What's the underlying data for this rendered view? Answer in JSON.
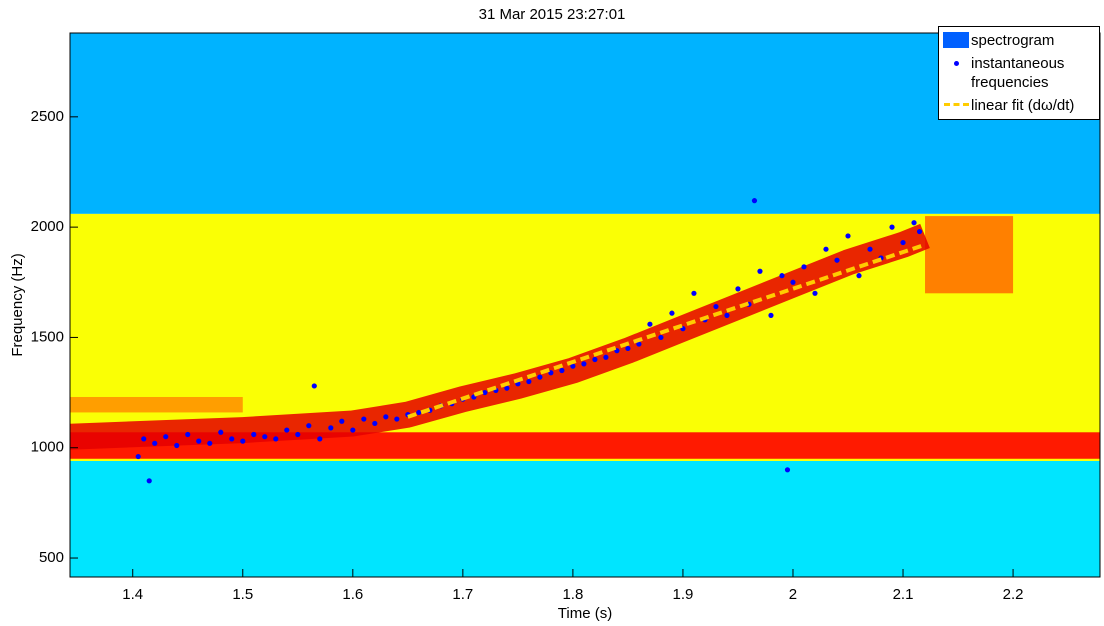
{
  "chart_data": {
    "type": "spectrogram",
    "title": "31 Mar 2015 23:27:01",
    "x_label": "Time (s)",
    "y_label": "Frequency (Hz)",
    "xlim": [
      1.343,
      2.279
    ],
    "ylim": [
      414,
      2880
    ],
    "xticks": [
      1.4,
      1.5,
      1.6,
      1.7,
      1.8,
      1.9,
      2,
      2.1,
      2.2
    ],
    "yticks": [
      500,
      1000,
      1500,
      2000,
      2500
    ],
    "series": [
      {
        "name": "spectrogram",
        "type": "heatmap",
        "color": "#0060ff",
        "bands": [
          {
            "x": [
              1.343,
              2.279
            ],
            "y": [
              414,
              940
            ],
            "level": 0.35
          },
          {
            "x": [
              1.343,
              2.279
            ],
            "y": [
              2060,
              2880
            ],
            "level": 0.3
          },
          {
            "x": [
              1.343,
              2.279
            ],
            "y": [
              940,
              2060
            ],
            "level": 0.62
          },
          {
            "x": [
              1.343,
              2.279
            ],
            "y": [
              950,
              1070
            ],
            "level": 0.85
          },
          {
            "x": [
              1.343,
              1.5
            ],
            "y": [
              1160,
              1230
            ],
            "level": 0.72
          },
          {
            "x": [
              2.12,
              2.2
            ],
            "y": [
              1700,
              2050
            ],
            "level": 0.75
          }
        ],
        "ridge": {
          "level": 0.9,
          "x": [
            1.343,
            1.5,
            1.6,
            1.65,
            1.7,
            1.75,
            1.8,
            1.85,
            1.9,
            1.95,
            2.0,
            2.05,
            2.1,
            2.12
          ],
          "y": [
            1050,
            1080,
            1110,
            1150,
            1220,
            1280,
            1350,
            1440,
            1540,
            1640,
            1740,
            1840,
            1920,
            1960
          ]
        }
      },
      {
        "name": "instantaneous frequencies",
        "type": "scatter",
        "color": "#0000ff",
        "x": [
          1.405,
          1.41,
          1.415,
          1.42,
          1.43,
          1.44,
          1.45,
          1.46,
          1.47,
          1.48,
          1.49,
          1.5,
          1.51,
          1.52,
          1.53,
          1.54,
          1.55,
          1.56,
          1.565,
          1.57,
          1.58,
          1.59,
          1.6,
          1.61,
          1.62,
          1.63,
          1.64,
          1.65,
          1.66,
          1.67,
          1.68,
          1.69,
          1.7,
          1.71,
          1.72,
          1.73,
          1.74,
          1.75,
          1.76,
          1.77,
          1.78,
          1.79,
          1.8,
          1.81,
          1.82,
          1.83,
          1.84,
          1.85,
          1.86,
          1.87,
          1.88,
          1.89,
          1.9,
          1.91,
          1.92,
          1.93,
          1.94,
          1.95,
          1.96,
          1.965,
          1.97,
          1.98,
          1.99,
          1.995,
          2.0,
          2.01,
          2.02,
          2.03,
          2.04,
          2.05,
          2.06,
          2.07,
          2.08,
          2.09,
          2.1,
          2.11,
          2.115
        ],
        "y": [
          960,
          1040,
          850,
          1020,
          1050,
          1010,
          1060,
          1030,
          1020,
          1070,
          1040,
          1030,
          1060,
          1050,
          1040,
          1080,
          1060,
          1100,
          1280,
          1040,
          1090,
          1120,
          1080,
          1130,
          1110,
          1140,
          1130,
          1150,
          1160,
          1170,
          1190,
          1200,
          1220,
          1230,
          1250,
          1260,
          1270,
          1290,
          1300,
          1320,
          1340,
          1350,
          1370,
          1380,
          1400,
          1410,
          1440,
          1450,
          1470,
          1560,
          1500,
          1610,
          1540,
          1700,
          1580,
          1640,
          1600,
          1720,
          1650,
          2120,
          1800,
          1600,
          1780,
          900,
          1750,
          1820,
          1700,
          1900,
          1850,
          1960,
          1780,
          1900,
          1860,
          2000,
          1930,
          2020,
          1980
        ]
      },
      {
        "name": "linear fit (dω/dt)",
        "type": "line",
        "color": "#ffcc00",
        "x": [
          1.65,
          2.12
        ],
        "y": [
          1140,
          1920
        ]
      }
    ]
  }
}
